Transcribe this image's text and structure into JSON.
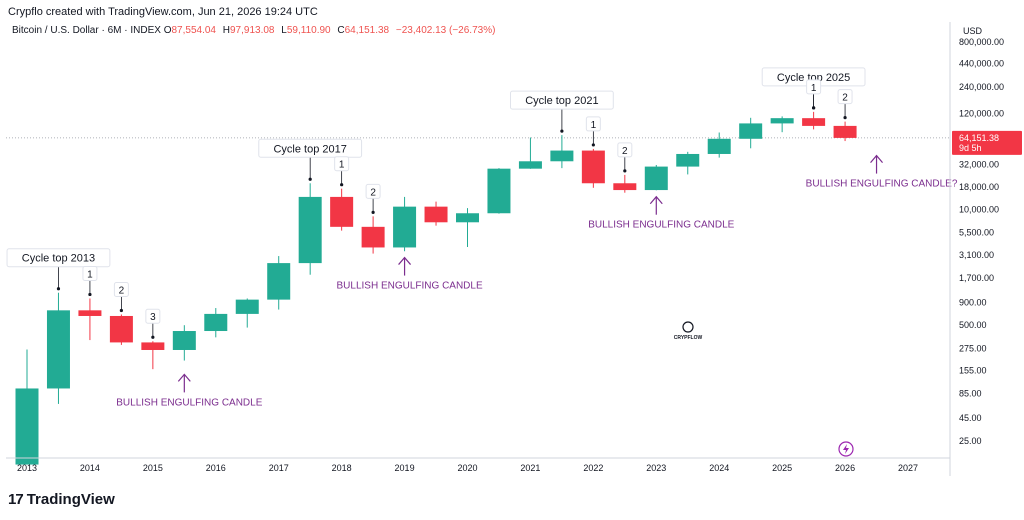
{
  "credit": "Crypflo created with TradingView.com, Jun 21, 2026 19:24 UTC",
  "legend": {
    "symbol": "Bitcoin / U.S. Dollar · 6M · INDEX",
    "open_key": "O",
    "open": "87,554.04",
    "high_key": "H",
    "high": "97,913.08",
    "low_key": "L",
    "low": "59,110.90",
    "close_key": "C",
    "close": "64,151.38",
    "change": "−23,402.13 (−26.73%)"
  },
  "currency": "USD",
  "brand": "TradingView",
  "watermark": "CRYPFLOW",
  "last_price": {
    "value": "64,151.38",
    "countdown": "9d 5h"
  },
  "colors": {
    "up": "#22ab94",
    "down": "#f23645",
    "annotation": "#7b2d8e",
    "last": "#f23645"
  },
  "chart_data": {
    "type": "candlestick",
    "y_scale": "log",
    "ylim": [
      16,
      900000
    ],
    "x_ticks": [
      "2013",
      "2014",
      "2015",
      "2016",
      "2017",
      "2018",
      "2019",
      "2020",
      "2021",
      "2022",
      "2023",
      "2024",
      "2025",
      "2026",
      "2027"
    ],
    "y_ticks": [
      "440,000.00",
      "240,000.00",
      "120,000.00",
      "64,151.38",
      "32,000.00",
      "18,000.00",
      "10,000.00",
      "5,500.00",
      "3,100.00",
      "1,700.00",
      "900.00",
      "500.00",
      "275.00",
      "155.00",
      "85.00",
      "45.00",
      "25.00"
    ],
    "y_tick_values": [
      440000,
      240000,
      120000,
      64151.38,
      32000,
      18000,
      10000,
      5500,
      3100,
      1700,
      900,
      500,
      275,
      155,
      85,
      45,
      25
    ],
    "candles": [
      {
        "t": 2013.0,
        "o": 13.5,
        "h": 266,
        "l": 13.5,
        "c": 97
      },
      {
        "t": 2013.5,
        "o": 97,
        "h": 1160,
        "l": 65,
        "c": 735
      },
      {
        "t": 2014.0,
        "o": 735,
        "h": 1000,
        "l": 340,
        "c": 635
      },
      {
        "t": 2014.5,
        "o": 635,
        "h": 660,
        "l": 300,
        "c": 320
      },
      {
        "t": 2015.0,
        "o": 320,
        "h": 330,
        "l": 160,
        "c": 263
      },
      {
        "t": 2015.5,
        "o": 263,
        "h": 500,
        "l": 200,
        "c": 430
      },
      {
        "t": 2016.0,
        "o": 430,
        "h": 780,
        "l": 365,
        "c": 670
      },
      {
        "t": 2016.5,
        "o": 670,
        "h": 1000,
        "l": 470,
        "c": 970
      },
      {
        "t": 2017.0,
        "o": 970,
        "h": 3000,
        "l": 750,
        "c": 2500
      },
      {
        "t": 2017.5,
        "o": 2500,
        "h": 19800,
        "l": 1850,
        "c": 13900
      },
      {
        "t": 2018.0,
        "o": 13900,
        "h": 17200,
        "l": 5800,
        "c": 6400
      },
      {
        "t": 2018.5,
        "o": 6400,
        "h": 8400,
        "l": 3200,
        "c": 3750
      },
      {
        "t": 2019.0,
        "o": 3750,
        "h": 13900,
        "l": 3400,
        "c": 10800
      },
      {
        "t": 2019.5,
        "o": 10800,
        "h": 12300,
        "l": 6600,
        "c": 7200
      },
      {
        "t": 2020.0,
        "o": 7200,
        "h": 10400,
        "l": 3800,
        "c": 9100
      },
      {
        "t": 2020.5,
        "o": 9100,
        "h": 29300,
        "l": 9000,
        "c": 28900
      },
      {
        "t": 2021.0,
        "o": 28900,
        "h": 64800,
        "l": 28800,
        "c": 35000
      },
      {
        "t": 2021.5,
        "o": 35000,
        "h": 69000,
        "l": 29300,
        "c": 46200
      },
      {
        "t": 2022.0,
        "o": 46200,
        "h": 48200,
        "l": 17600,
        "c": 19800
      },
      {
        "t": 2022.5,
        "o": 19800,
        "h": 24600,
        "l": 15500,
        "c": 16600
      },
      {
        "t": 2023.0,
        "o": 16600,
        "h": 31800,
        "l": 16500,
        "c": 30500
      },
      {
        "t": 2023.5,
        "o": 30500,
        "h": 44700,
        "l": 24900,
        "c": 42300
      },
      {
        "t": 2024.0,
        "o": 42300,
        "h": 73800,
        "l": 38500,
        "c": 62700
      },
      {
        "t": 2024.5,
        "o": 62700,
        "h": 108000,
        "l": 49000,
        "c": 93400
      },
      {
        "t": 2025.0,
        "o": 93400,
        "h": 112000,
        "l": 74400,
        "c": 107000
      },
      {
        "t": 2025.5,
        "o": 107000,
        "h": 126000,
        "l": 80000,
        "c": 87554
      },
      {
        "t": 2026.0,
        "o": 87554.04,
        "h": 97913.08,
        "l": 59110.9,
        "c": 64151.38
      }
    ],
    "annotations": [
      {
        "label": "Cycle top 2013",
        "kind": "box",
        "t": 2013.5,
        "price": 1160
      },
      {
        "label": "Cycle top 2017",
        "kind": "box",
        "t": 2017.5,
        "price": 19800
      },
      {
        "label": "Cycle top 2021",
        "kind": "box",
        "t": 2021.5,
        "price": 69000
      },
      {
        "label": "Cycle top 2025",
        "kind": "box",
        "t": 2025.5,
        "price": 126000
      },
      {
        "label": "1",
        "kind": "num",
        "t": 2014.0,
        "price": 1000
      },
      {
        "label": "2",
        "kind": "num",
        "t": 2014.5,
        "price": 660
      },
      {
        "label": "3",
        "kind": "num",
        "t": 2015.0,
        "price": 330
      },
      {
        "label": "1",
        "kind": "num",
        "t": 2018.0,
        "price": 17200
      },
      {
        "label": "2",
        "kind": "num",
        "t": 2018.5,
        "price": 8400
      },
      {
        "label": "1",
        "kind": "num",
        "t": 2022.0,
        "price": 48200
      },
      {
        "label": "2",
        "kind": "num",
        "t": 2022.5,
        "price": 24600
      },
      {
        "label": "1",
        "kind": "num",
        "t": 2025.5,
        "price": 126000
      },
      {
        "label": "2",
        "kind": "num",
        "t": 2026.0,
        "price": 97913
      }
    ],
    "notes": [
      {
        "label": "BULLISH ENGULFING CANDLE",
        "t": 2015.5,
        "price": 155
      },
      {
        "label": "BULLISH ENGULFING CANDLE",
        "t": 2019.0,
        "price": 3200
      },
      {
        "label": "BULLISH ENGULFING CANDLE",
        "t": 2023.0,
        "price": 15500
      },
      {
        "label": "BULLISH ENGULFING CANDLE?",
        "t": 2026.5,
        "price": 45000
      }
    ]
  }
}
